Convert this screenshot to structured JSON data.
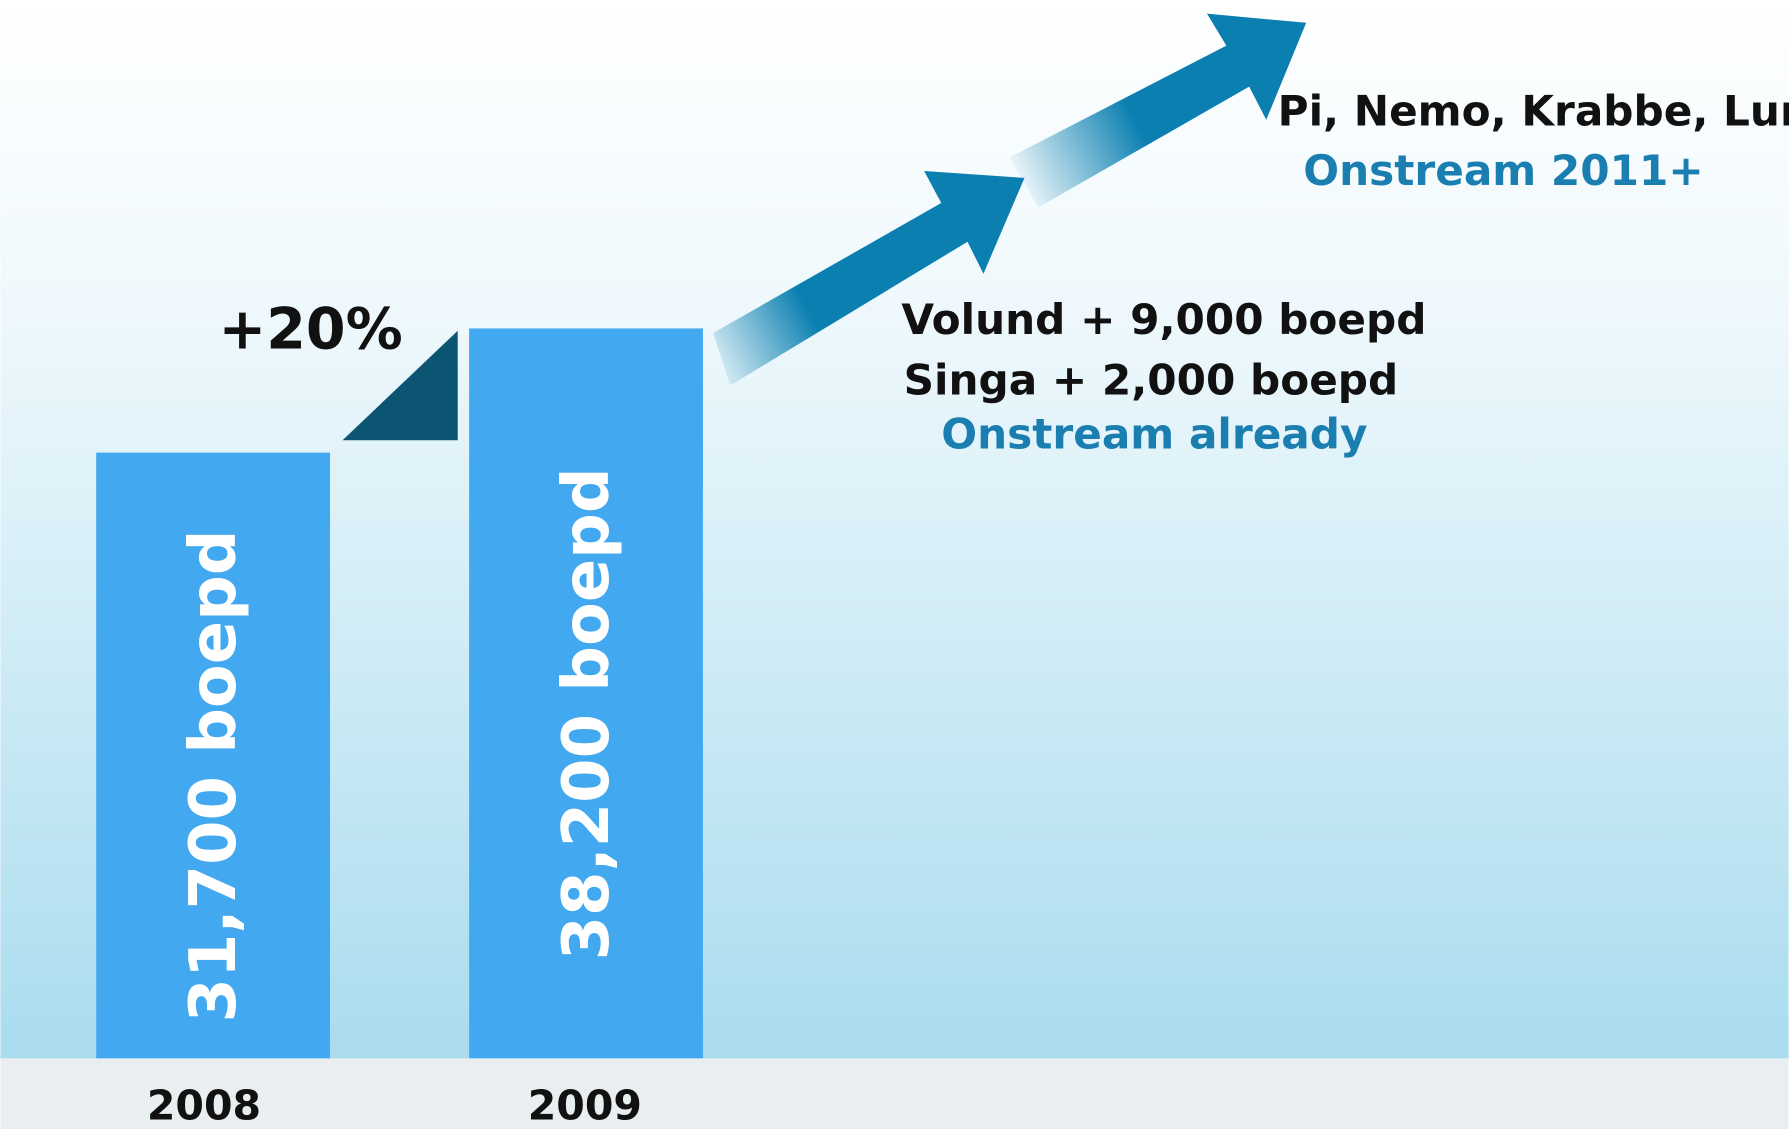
{
  "chart_data": {
    "type": "bar",
    "categories": [
      "2008",
      "2009"
    ],
    "values": [
      31700,
      38200
    ],
    "value_labels": [
      "31,700 boepd",
      "38,200 boepd"
    ],
    "color": "#42a8f0",
    "annotations": {
      "growth": "+20%",
      "volund": "Volund + 9,000 boepd",
      "singa": "Singa + 2,000 boepd",
      "onstream_already": "Onstream already",
      "future_fields": "Pi, Nemo, Krabbe, Luno",
      "onstream_future": "Onstream 2011+"
    }
  }
}
